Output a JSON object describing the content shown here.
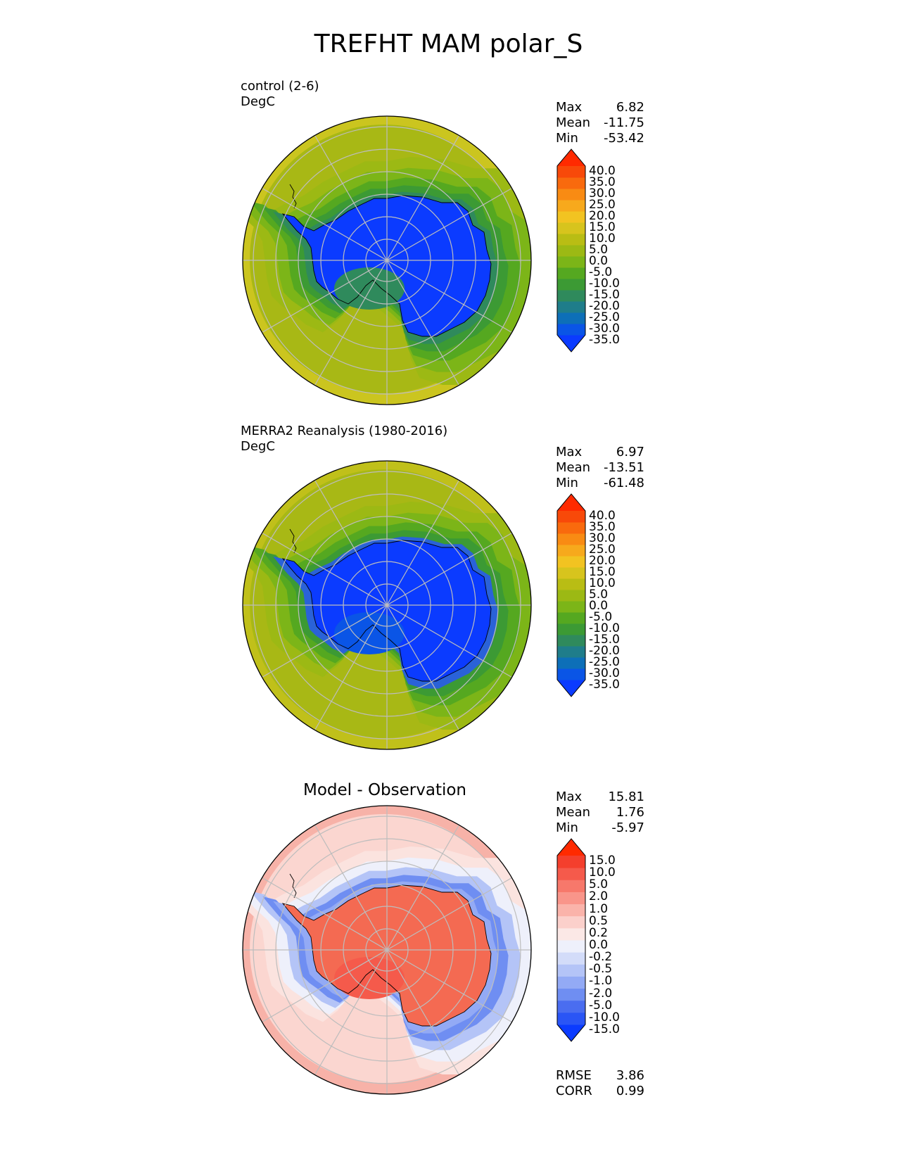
{
  "title": "TREFHT MAM polar_S",
  "panels": [
    {
      "label": "control (2-6)",
      "units": "DegC",
      "center_title": "",
      "stats": [
        {
          "name": "Max",
          "value": "6.82"
        },
        {
          "name": "Mean",
          "value": "-11.75"
        },
        {
          "name": "Min",
          "value": "-53.42"
        }
      ],
      "colorbar": {
        "ticks": [
          "40.0",
          "35.0",
          "30.0",
          "25.0",
          "20.0",
          "15.0",
          "10.0",
          "5.0",
          "0.0",
          "-5.0",
          "-10.0",
          "-15.0",
          "-20.0",
          "-25.0",
          "-30.0",
          "-35.0"
        ],
        "colors": [
          "#0b3bff",
          "#0a55e6",
          "#0d6fb8",
          "#1f7d8a",
          "#2f8a5c",
          "#3c9a34",
          "#55a820",
          "#7cb518",
          "#9cb914",
          "#b9bd14",
          "#d7c41d",
          "#f2c321",
          "#f7a91c",
          "#f98b13",
          "#f96a0d",
          "#f84909",
          "#ff2a00"
        ],
        "low_color": "#0b3bff",
        "high_color": "#ff2a00"
      },
      "map": {
        "ocean_color": "#a8b815",
        "outer_color": "#cbc51f",
        "ring_colors": [
          "#9cb914",
          "#7cb518",
          "#55a820",
          "#3c9a34",
          "#2f8a5c"
        ],
        "interior_color": "#0b3bff",
        "ross_color": "#2f8a5c",
        "gridline_color": "#bdbdbd"
      }
    },
    {
      "label": "MERRA2 Reanalysis (1980-2016)",
      "units": "DegC",
      "center_title": "",
      "stats": [
        {
          "name": "Max",
          "value": "6.97"
        },
        {
          "name": "Mean",
          "value": "-13.51"
        },
        {
          "name": "Min",
          "value": "-61.48"
        }
      ],
      "colorbar": {
        "ticks": [
          "40.0",
          "35.0",
          "30.0",
          "25.0",
          "20.0",
          "15.0",
          "10.0",
          "5.0",
          "0.0",
          "-5.0",
          "-10.0",
          "-15.0",
          "-20.0",
          "-25.0",
          "-30.0",
          "-35.0"
        ],
        "colors": [
          "#0b3bff",
          "#0a55e6",
          "#0d6fb8",
          "#1f7d8a",
          "#2f8a5c",
          "#3c9a34",
          "#55a820",
          "#7cb518",
          "#9cb914",
          "#b9bd14",
          "#d7c41d",
          "#f2c321",
          "#f7a91c",
          "#f98b13",
          "#f96a0d",
          "#f84909",
          "#ff2a00"
        ],
        "low_color": "#0b3bff",
        "high_color": "#ff2a00"
      },
      "map": {
        "ocean_color": "#a8b815",
        "outer_color": "#c0c01a",
        "ring_colors": [
          "#9cb914",
          "#7cb518",
          "#55a820",
          "#3c9a34",
          "#2a62d8"
        ],
        "interior_color": "#0b3bff",
        "ross_color": "#0a55e6",
        "gridline_color": "#bdbdbd"
      }
    },
    {
      "label": "",
      "units": "",
      "center_title": "Model - Observation",
      "stats": [
        {
          "name": "Max",
          "value": "15.81"
        },
        {
          "name": "Mean",
          "value": "1.76"
        },
        {
          "name": "Min",
          "value": "-5.97"
        }
      ],
      "extra_stats": [
        {
          "name": "RMSE",
          "value": "3.86"
        },
        {
          "name": "CORR",
          "value": "0.99"
        }
      ],
      "colorbar": {
        "ticks": [
          "15.0",
          "10.0",
          "5.0",
          "2.0",
          "1.0",
          "0.5",
          "0.2",
          "0.0",
          "-0.2",
          "-0.5",
          "-1.0",
          "-2.0",
          "-5.0",
          "-10.0",
          "-15.0"
        ],
        "colors": [
          "#0b3bff",
          "#2a55f5",
          "#4a6df0",
          "#6f8ef2",
          "#93aaf5",
          "#b4c4f7",
          "#d3dcf9",
          "#eef0fb",
          "#fbe8e6",
          "#fbd0cb",
          "#fab3aa",
          "#f9958a",
          "#f7786b",
          "#f55a4b",
          "#f43f2d",
          "#ff2a00"
        ],
        "low_color": "#0b3bff",
        "high_color": "#ff2a00"
      },
      "map": {
        "ocean_color": "#fbd6d0",
        "outer_color": "#f7b2a8",
        "ring_colors": [
          "#fbe3df",
          "#eef0fb",
          "#b4c4f7",
          "#6f8ef2",
          "#93aaf5"
        ],
        "interior_color": "#f46a52",
        "ross_color": "#f55a4b",
        "gridline_color": "#bdbdbd"
      }
    }
  ]
}
